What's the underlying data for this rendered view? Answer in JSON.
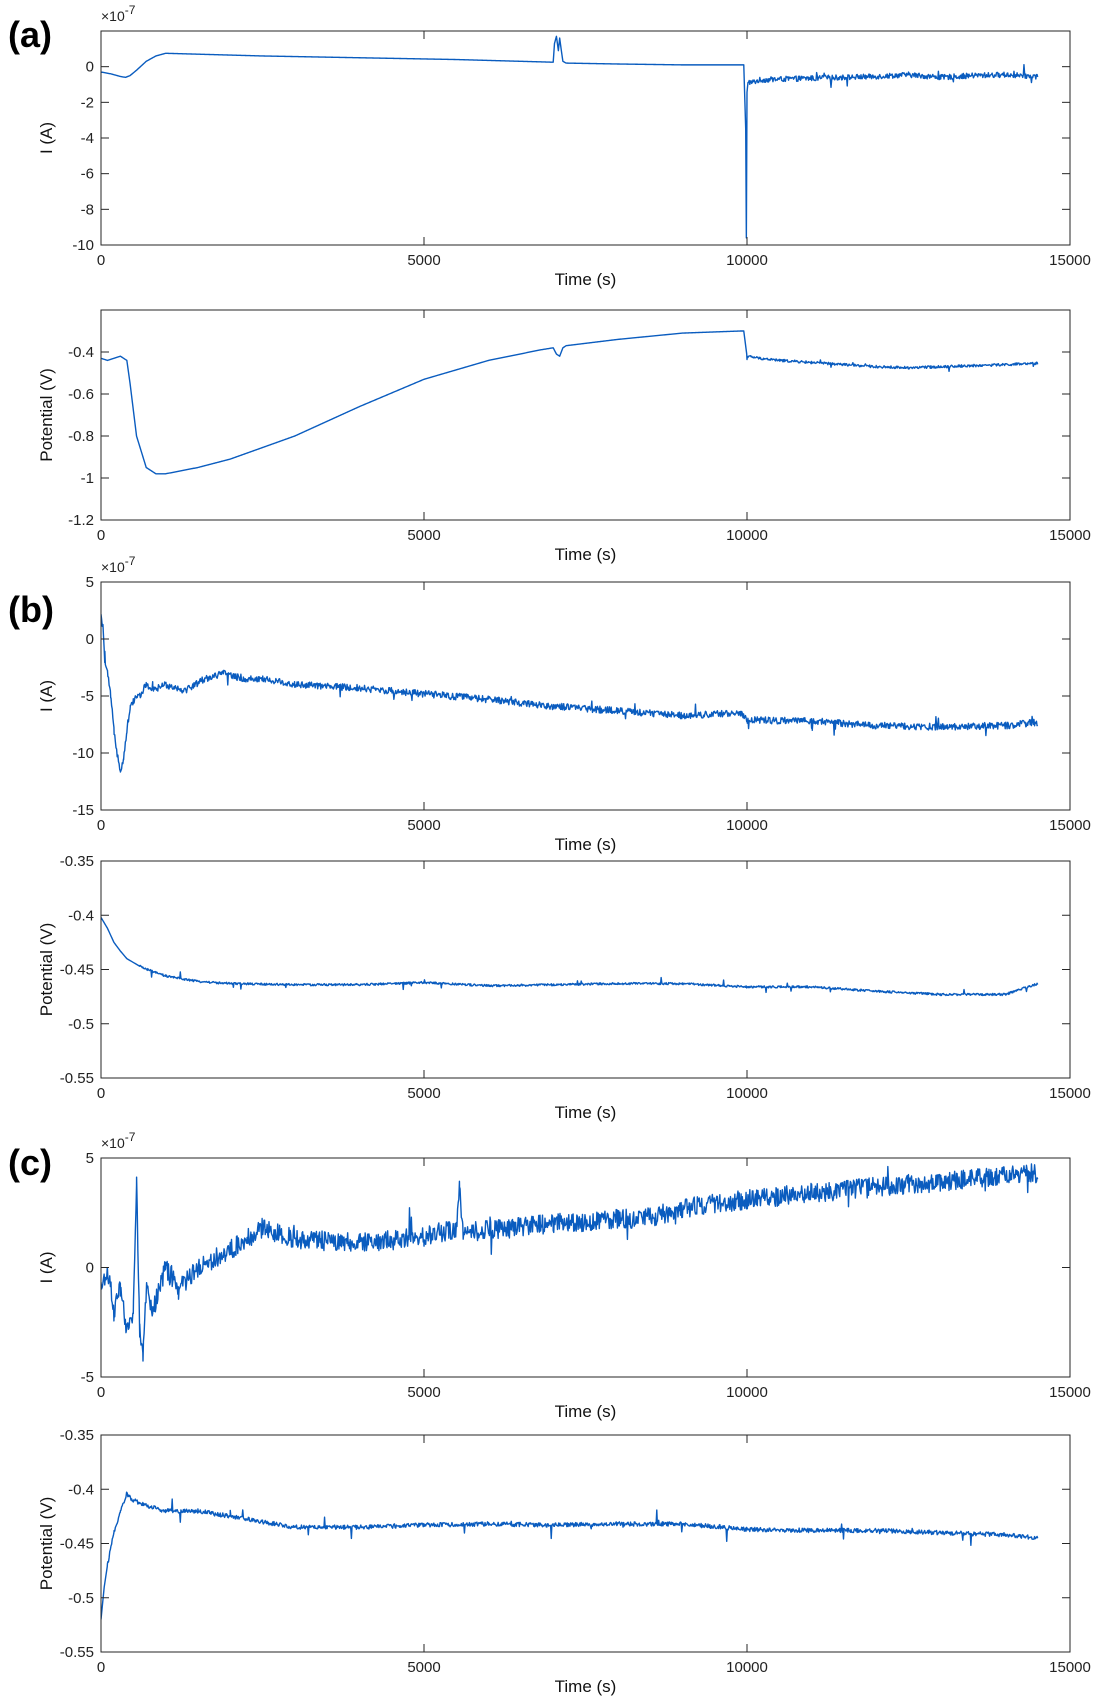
{
  "figure": {
    "panels": [
      {
        "label": "(a)",
        "plots": [
          0,
          1
        ]
      },
      {
        "label": "(b)",
        "plots": [
          2,
          3
        ]
      },
      {
        "label": "(c)",
        "plots": [
          4,
          5
        ]
      }
    ],
    "line_color": "#0a5cbf",
    "axis_color": "#262626",
    "grid_color": "#d9d9d9"
  },
  "chart_data": [
    {
      "type": "line",
      "panel": "(a)",
      "xlabel": "Time (s)",
      "ylabel": "I (A)",
      "exponent_label": "×10",
      "exponent_power": "-7",
      "xlim": [
        0,
        15000
      ],
      "ylim": [
        -10,
        2
      ],
      "xticks": [
        0,
        5000,
        10000,
        15000
      ],
      "xtick_labels": [
        "0",
        "5000",
        "10000",
        "15000"
      ],
      "yticks": [
        0,
        -2,
        -4,
        -6,
        -8,
        -10
      ],
      "ytick_labels": [
        "0",
        "-2",
        "-4",
        "-6",
        "-8",
        "-10"
      ],
      "series": [
        {
          "x": [
            0,
            150,
            300,
            380,
            450,
            550,
            700,
            850,
            1000,
            1500,
            2500,
            4000,
            5500,
            6500,
            7000,
            7020,
            7050,
            7080,
            7100,
            7130,
            7150,
            7200,
            8000,
            9000,
            9950,
            9980,
            9990,
            10000,
            10020,
            10060,
            10200,
            10500,
            11000,
            11500,
            12000,
            12500,
            13000,
            13500,
            14000,
            14500
          ],
          "y": [
            -0.3,
            -0.4,
            -0.55,
            -0.6,
            -0.5,
            -0.2,
            0.3,
            0.6,
            0.75,
            0.7,
            0.6,
            0.5,
            0.4,
            0.3,
            0.25,
            1.3,
            1.7,
            0.9,
            1.6,
            0.8,
            0.3,
            0.2,
            0.15,
            0.1,
            0.1,
            -3.5,
            -9.6,
            -1.5,
            -0.8,
            -0.9,
            -0.75,
            -0.7,
            -0.65,
            -0.6,
            -0.55,
            -0.45,
            -0.6,
            -0.5,
            -0.45,
            -0.55
          ],
          "noise_from": 10000,
          "noise_amp": 0.3,
          "spike_amp": 0.5
        }
      ]
    },
    {
      "type": "line",
      "panel": "(a)",
      "xlabel": "Time (s)",
      "ylabel": "Potential (V)",
      "xlim": [
        0,
        15000
      ],
      "ylim": [
        -1.2,
        -0.2
      ],
      "xticks": [
        0,
        5000,
        10000,
        15000
      ],
      "xtick_labels": [
        "0",
        "5000",
        "10000",
        "15000"
      ],
      "yticks": [
        -0.4,
        -0.6,
        -0.8,
        -1,
        -1.2
      ],
      "ytick_labels": [
        "-0.4",
        "-0.6",
        "-0.8",
        "-1",
        "-1.2"
      ],
      "series": [
        {
          "x": [
            0,
            100,
            300,
            400,
            450,
            550,
            700,
            850,
            1000,
            1500,
            2000,
            3000,
            4000,
            5000,
            6000,
            6800,
            7000,
            7050,
            7100,
            7150,
            7200,
            8000,
            9000,
            9900,
            9950,
            10000,
            10200,
            10500,
            11000,
            11500,
            12000,
            12500,
            13000,
            13500,
            14000,
            14500
          ],
          "y": [
            -0.43,
            -0.44,
            -0.42,
            -0.44,
            -0.55,
            -0.8,
            -0.95,
            -0.98,
            -0.98,
            -0.95,
            -0.91,
            -0.8,
            -0.66,
            -0.53,
            -0.44,
            -0.39,
            -0.38,
            -0.41,
            -0.42,
            -0.38,
            -0.37,
            -0.34,
            -0.31,
            -0.3,
            -0.3,
            -0.42,
            -0.43,
            -0.44,
            -0.45,
            -0.46,
            -0.47,
            -0.475,
            -0.47,
            -0.465,
            -0.46,
            -0.455
          ],
          "noise_from": 10000,
          "noise_amp": 0.012,
          "spike_amp": 0.02
        }
      ]
    },
    {
      "type": "line",
      "panel": "(b)",
      "xlabel": "Time (s)",
      "ylabel": "I (A)",
      "exponent_label": "×10",
      "exponent_power": "-7",
      "xlim": [
        0,
        15000
      ],
      "ylim": [
        -15,
        5
      ],
      "xticks": [
        0,
        5000,
        10000,
        15000
      ],
      "xtick_labels": [
        "0",
        "5000",
        "10000",
        "15000"
      ],
      "yticks": [
        5,
        0,
        -5,
        -10,
        -15
      ],
      "ytick_labels": [
        "5",
        "0",
        "-5",
        "-10",
        "-15"
      ],
      "series": [
        {
          "x": [
            0,
            30,
            60,
            100,
            150,
            200,
            250,
            300,
            350,
            400,
            450,
            500,
            550,
            600,
            700,
            800,
            1000,
            1300,
            1600,
            1900,
            2200,
            2500,
            3000,
            4000,
            5000,
            6000,
            7000,
            8000,
            9000,
            9900,
            10000,
            11000,
            12000,
            13000,
            14000,
            14500
          ],
          "y": [
            2,
            1,
            -2,
            -3,
            -5,
            -8,
            -10,
            -11.5,
            -10.5,
            -8,
            -6,
            -5.5,
            -5,
            -5,
            -4,
            -4.5,
            -4,
            -4.5,
            -3.5,
            -3,
            -3.5,
            -3.5,
            -4,
            -4.3,
            -4.8,
            -5.3,
            -5.9,
            -6.3,
            -6.7,
            -6.5,
            -7.1,
            -7.2,
            -7.6,
            -7.7,
            -7.6,
            -7.3
          ],
          "noise_from": 0,
          "noise_amp": 0.6,
          "spike_amp": 1.0
        }
      ]
    },
    {
      "type": "line",
      "panel": "(b)",
      "xlabel": "Time (s)",
      "ylabel": "Potential (V)",
      "xlim": [
        0,
        15000
      ],
      "ylim": [
        -0.55,
        -0.35
      ],
      "xticks": [
        0,
        5000,
        10000,
        15000
      ],
      "xtick_labels": [
        "0",
        "5000",
        "10000",
        "15000"
      ],
      "yticks": [
        -0.35,
        -0.4,
        -0.45,
        -0.5,
        -0.55
      ],
      "ytick_labels": [
        "-0.35",
        "-0.4",
        "-0.45",
        "-0.5",
        "-0.55"
      ],
      "series": [
        {
          "x": [
            0,
            100,
            200,
            300,
            400,
            600,
            800,
            1000,
            1500,
            2000,
            3000,
            4000,
            5000,
            6000,
            7000,
            8000,
            9000,
            10000,
            11000,
            12000,
            13000,
            14000,
            14500
          ],
          "y": [
            -0.402,
            -0.412,
            -0.425,
            -0.433,
            -0.44,
            -0.447,
            -0.452,
            -0.456,
            -0.461,
            -0.463,
            -0.464,
            -0.464,
            -0.462,
            -0.465,
            -0.464,
            -0.463,
            -0.463,
            -0.466,
            -0.466,
            -0.47,
            -0.473,
            -0.473,
            -0.463
          ],
          "noise_from": 600,
          "noise_amp": 0.002,
          "spike_amp": 0.006
        }
      ]
    },
    {
      "type": "line",
      "panel": "(c)",
      "xlabel": "Time (s)",
      "ylabel": "I (A)",
      "exponent_label": "×10",
      "exponent_power": "-7",
      "xlim": [
        0,
        15000
      ],
      "ylim": [
        -5,
        5
      ],
      "xticks": [
        0,
        5000,
        10000,
        15000
      ],
      "xtick_labels": [
        "0",
        "5000",
        "10000",
        "15000"
      ],
      "yticks": [
        5,
        0,
        -5
      ],
      "ytick_labels": [
        "5",
        "0",
        "-5"
      ],
      "series": [
        {
          "x": [
            0,
            100,
            200,
            300,
            400,
            500,
            550,
            600,
            650,
            700,
            800,
            1000,
            1200,
            1500,
            2000,
            2500,
            3000,
            4000,
            5000,
            5500,
            5550,
            5600,
            6000,
            7000,
            8000,
            8500,
            9000,
            10000,
            11000,
            12000,
            13000,
            14000,
            14500
          ],
          "y": [
            -1,
            0,
            -2,
            -1,
            -3,
            -2,
            4,
            -3,
            -4,
            -1,
            -2,
            0,
            -1,
            0,
            0.8,
            1.8,
            1.3,
            1.1,
            1.4,
            1.8,
            4,
            1.6,
            1.7,
            2,
            2.2,
            2.3,
            2.7,
            3.1,
            3.4,
            3.7,
            3.9,
            4.2,
            4.3
          ],
          "noise_from": 0,
          "noise_amp": 0.9,
          "spike_amp": 1.2
        }
      ]
    },
    {
      "type": "line",
      "panel": "(c)",
      "xlabel": "Time (s)",
      "ylabel": "Potential (V)",
      "xlim": [
        0,
        15000
      ],
      "ylim": [
        -0.55,
        -0.35
      ],
      "xticks": [
        0,
        5000,
        10000,
        15000
      ],
      "xtick_labels": [
        "0",
        "5000",
        "10000",
        "15000"
      ],
      "yticks": [
        -0.35,
        -0.4,
        -0.45,
        -0.5,
        -0.55
      ],
      "ytick_labels": [
        "-0.35",
        "-0.4",
        "-0.45",
        "-0.5",
        "-0.55"
      ],
      "series": [
        {
          "x": [
            0,
            50,
            100,
            200,
            300,
            400,
            500,
            700,
            1000,
            1500,
            2000,
            2500,
            3000,
            4000,
            5000,
            6000,
            7000,
            8000,
            9000,
            10000,
            11000,
            12000,
            13000,
            14000,
            14500
          ],
          "y": [
            -0.52,
            -0.49,
            -0.47,
            -0.44,
            -0.42,
            -0.405,
            -0.41,
            -0.415,
            -0.42,
            -0.42,
            -0.425,
            -0.43,
            -0.435,
            -0.435,
            -0.433,
            -0.432,
            -0.433,
            -0.432,
            -0.432,
            -0.437,
            -0.438,
            -0.438,
            -0.44,
            -0.442,
            -0.445
          ],
          "noise_from": 100,
          "noise_amp": 0.004,
          "spike_amp": 0.012
        }
      ]
    }
  ]
}
